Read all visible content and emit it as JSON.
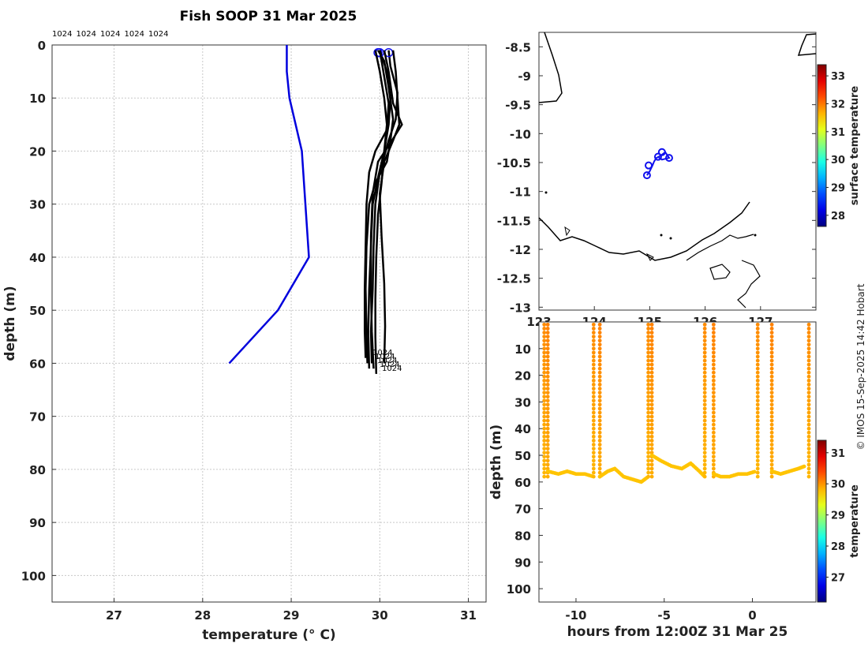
{
  "title": "Fish SOOP 31 Mar 2025",
  "credit": "© IMOS 15-Sep-2025 14:42 Hobart",
  "colors": {
    "blue_line": "#0000dd",
    "profile": "#000000",
    "grid": "#bbbbbb"
  },
  "chart_data": [
    {
      "type": "line",
      "xlabel": "temperature (° C)",
      "ylabel": "depth (m)",
      "xlim": [
        26.3,
        31.2
      ],
      "ylim": [
        0,
        105
      ],
      "xticks": [
        "27",
        "28",
        "29",
        "30",
        "31"
      ],
      "yticks": [
        "0",
        "10",
        "20",
        "30",
        "40",
        "50",
        "60",
        "70",
        "80",
        "90",
        "100"
      ],
      "top_labels": [
        "1024",
        "1024",
        "1024",
        "1024",
        "1024"
      ],
      "end_labels": [
        "1024",
        "1024",
        "1024",
        "1024",
        "1024"
      ],
      "climatology": {
        "x": [
          28.95,
          28.95,
          28.98,
          29.12,
          29.2,
          28.85,
          28.3
        ],
        "y": [
          0,
          5,
          10,
          20,
          40,
          50,
          60
        ]
      },
      "series": [
        {
          "x": [
            29.98,
            30.05,
            30.1,
            30.15,
            30.12,
            30.08,
            29.95,
            29.88,
            29.85,
            29.84,
            29.85,
            29.86
          ],
          "y": [
            1,
            3,
            8,
            14,
            18,
            22,
            26,
            30,
            38,
            46,
            54,
            60
          ]
        },
        {
          "x": [
            30.0,
            30.08,
            30.12,
            30.1,
            30.05,
            29.98,
            29.92,
            29.9,
            29.88,
            29.87,
            29.88
          ],
          "y": [
            1,
            5,
            10,
            15,
            20,
            25,
            30,
            38,
            46,
            54,
            61
          ]
        },
        {
          "x": [
            30.1,
            30.12,
            30.2,
            30.18,
            30.1,
            30.0,
            29.95,
            29.93,
            29.92,
            29.9,
            29.91
          ],
          "y": [
            1,
            4,
            9,
            14,
            18,
            24,
            30,
            38,
            46,
            54,
            60
          ]
        },
        {
          "x": [
            30.05,
            30.1,
            30.15,
            30.25,
            30.1,
            29.98,
            29.92,
            29.9,
            29.9,
            29.91,
            29.93
          ],
          "y": [
            1,
            5,
            11,
            15,
            19,
            22,
            28,
            36,
            46,
            54,
            61
          ]
        },
        {
          "x": [
            29.95,
            30.0,
            30.05,
            30.08,
            30.05,
            30.02,
            29.98,
            29.96,
            29.95,
            29.95,
            29.96
          ],
          "y": [
            1,
            5,
            10,
            15,
            20,
            26,
            32,
            40,
            48,
            55,
            62
          ]
        },
        {
          "x": [
            30.15,
            30.18,
            30.2,
            30.22,
            30.15,
            30.05,
            30.0,
            30.02,
            30.05,
            30.06,
            30.05
          ],
          "y": [
            1,
            5,
            10,
            15,
            18,
            22,
            28,
            36,
            45,
            53,
            60
          ]
        },
        {
          "x": [
            30.0,
            30.05,
            30.1,
            30.08,
            29.95,
            29.88,
            29.85,
            29.84,
            29.83,
            29.83,
            29.84
          ],
          "y": [
            1,
            6,
            11,
            16,
            20,
            24,
            30,
            38,
            46,
            54,
            59
          ]
        }
      ]
    },
    {
      "type": "map",
      "colorbar_label": "surface temperature",
      "lon_ticks": [
        "123",
        "124",
        "125",
        "126",
        "127"
      ],
      "lat_ticks": [
        "-8.5",
        "-9",
        "-9.5",
        "-10",
        "-10.5",
        "-11",
        "-11.5",
        "-12",
        "-12.5",
        "-13"
      ],
      "xlim": [
        123.0,
        128.0
      ],
      "ylim": [
        -13.05,
        -8.25
      ],
      "colorbar_ticks": [
        "28",
        "29",
        "30",
        "31",
        "32",
        "33"
      ],
      "colorbar_range": [
        27.6,
        33.4
      ],
      "track": {
        "lon": [
          124.95,
          125.0,
          125.05,
          125.08,
          125.12,
          125.2,
          125.28,
          125.35,
          125.22,
          125.15
        ],
        "lat": [
          -10.72,
          -10.65,
          -10.55,
          -10.48,
          -10.42,
          -10.38,
          -10.32,
          -10.42,
          -10.45,
          -10.4
        ]
      }
    },
    {
      "type": "scatter",
      "xlabel": "hours from 12:00Z 31 Mar 25",
      "ylabel": "depth (m)",
      "colorbar_label": "temperature",
      "xlim": [
        -12.1,
        3.6
      ],
      "ylim": [
        0,
        105
      ],
      "xticks": [
        "-10",
        "-5",
        "0"
      ],
      "yticks": [
        "10",
        "20",
        "30",
        "40",
        "50",
        "60",
        "70",
        "80",
        "90",
        "100"
      ],
      "colorbar_ticks": [
        "27",
        "28",
        "29",
        "30",
        "31"
      ],
      "colorbar_range": [
        26.2,
        31.4
      ],
      "casts": [
        {
          "x0": -11.8,
          "x1": -11.6,
          "dive": [
            [
              -11.6,
              56
            ],
            [
              -11,
              57
            ],
            [
              -10.5,
              56
            ],
            [
              -10,
              57
            ],
            [
              -9.5,
              57
            ],
            [
              -9.0,
              58
            ]
          ]
        },
        {
          "x0": -9.0,
          "x1": -8.65,
          "dive": [
            [
              -8.65,
              58
            ],
            [
              -8.2,
              56
            ],
            [
              -7.8,
              55
            ],
            [
              -7.3,
              58
            ],
            [
              -6.8,
              59
            ],
            [
              -6.3,
              60
            ],
            [
              -5.9,
              58
            ]
          ]
        },
        {
          "x0": -5.9,
          "x1": -5.7,
          "dive": [
            [
              -5.7,
              50
            ],
            [
              -5.2,
              52
            ],
            [
              -4.6,
              54
            ],
            [
              -4.0,
              55
            ],
            [
              -3.5,
              53
            ],
            [
              -3.0,
              56
            ],
            [
              -2.7,
              58
            ]
          ]
        },
        {
          "x0": -2.7,
          "x1": -2.2,
          "dive": [
            [
              -2.2,
              57
            ],
            [
              -1.8,
              58
            ],
            [
              -1.3,
              58
            ],
            [
              -0.8,
              57
            ],
            [
              -0.3,
              57
            ],
            [
              0.2,
              56
            ]
          ]
        },
        {
          "x0": 0.3,
          "x1": 1.1,
          "dive": [
            [
              1.1,
              56
            ],
            [
              1.6,
              57
            ],
            [
              2.1,
              56
            ],
            [
              2.6,
              55
            ],
            [
              3.0,
              54
            ]
          ]
        },
        {
          "x0": 3.2,
          "x1": 3.2,
          "dive": []
        }
      ]
    }
  ]
}
